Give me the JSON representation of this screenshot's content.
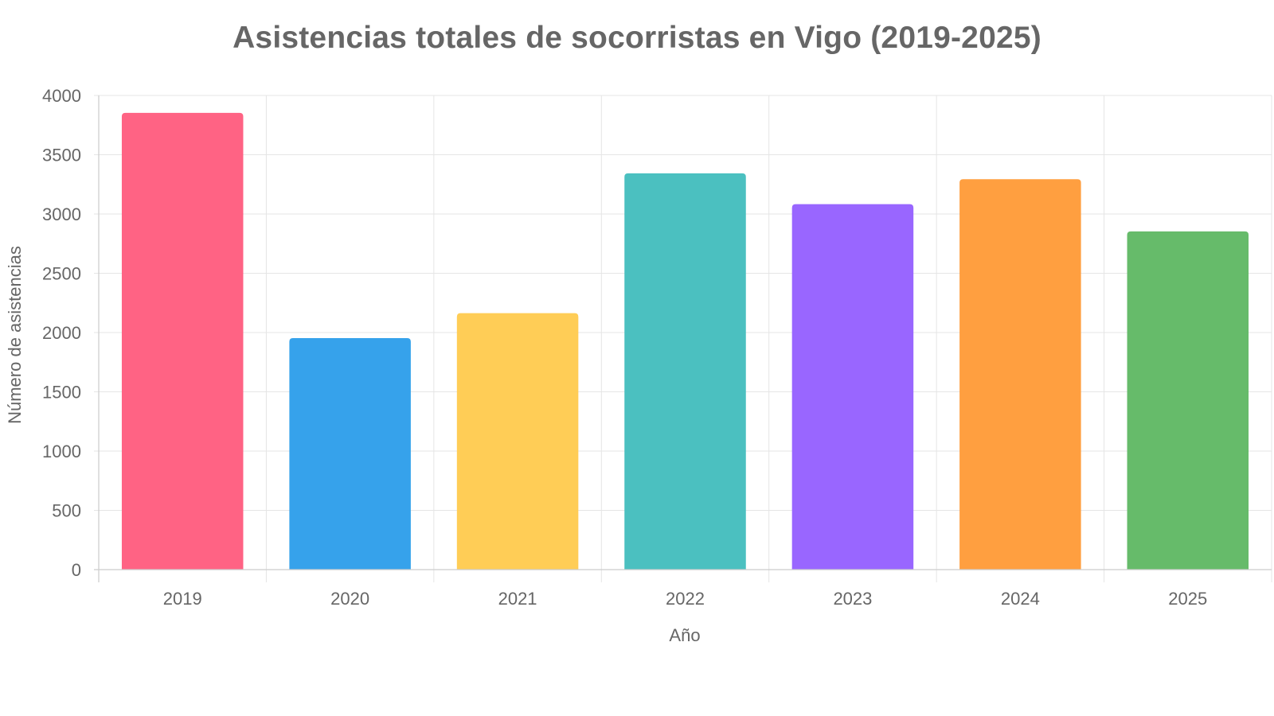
{
  "chart_data": {
    "type": "bar",
    "title": "Asistencias totales de socorristas en Vigo (2019-2025)",
    "xlabel": "Año",
    "ylabel": "Número de asistencias",
    "categories": [
      "2019",
      "2020",
      "2021",
      "2022",
      "2023",
      "2024",
      "2025"
    ],
    "values": [
      3850,
      1950,
      2160,
      3340,
      3080,
      3290,
      2850
    ],
    "colors": [
      "#ff6384",
      "#36a2eb",
      "#ffcd56",
      "#4bc0c0",
      "#9966ff",
      "#ff9f40",
      "#66bb6a"
    ],
    "ylim": [
      0,
      4000
    ],
    "yticks": [
      "0",
      "500",
      "1000",
      "1500",
      "2000",
      "2500",
      "3000",
      "3500",
      "4000"
    ],
    "grid": true,
    "legend": "none"
  },
  "colors": {
    "grid": "#e5e5e5",
    "axis": "#cccccc",
    "text": "#666666"
  }
}
